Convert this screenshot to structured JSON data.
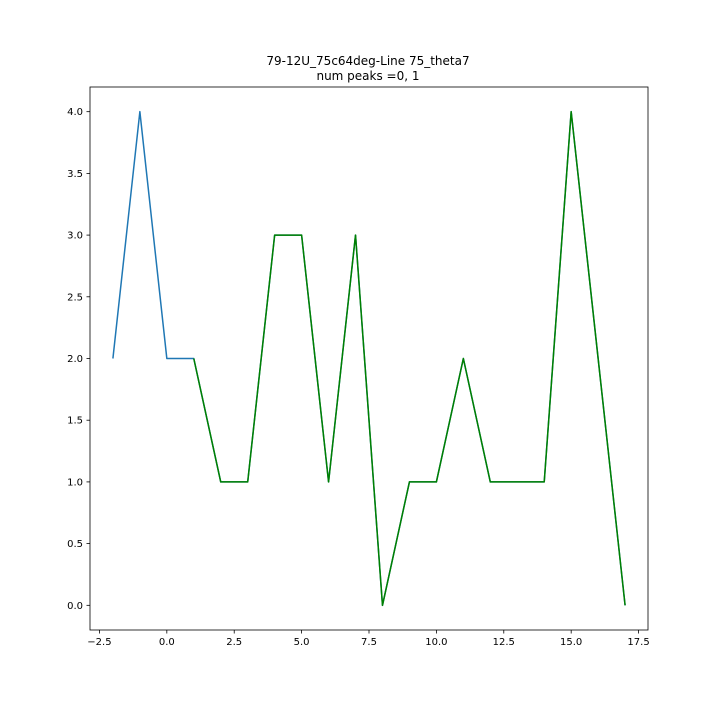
{
  "chart_data": {
    "type": "line",
    "title": "79-12U_75c64deg-Line 75_theta7",
    "subtitle": "num peaks =0, 1",
    "xlim": [
      -2.85,
      17.85
    ],
    "ylim": [
      -0.2,
      4.2
    ],
    "xticks": [
      -2.5,
      0.0,
      2.5,
      5.0,
      7.5,
      10.0,
      12.5,
      15.0,
      17.5
    ],
    "xtick_labels": [
      "−2.5",
      "0.0",
      "2.5",
      "5.0",
      "7.5",
      "10.0",
      "12.5",
      "15.0",
      "17.5"
    ],
    "yticks": [
      0.0,
      0.5,
      1.0,
      1.5,
      2.0,
      2.5,
      3.0,
      3.5,
      4.0
    ],
    "ytick_labels": [
      "0.0",
      "0.5",
      "1.0",
      "1.5",
      "2.0",
      "2.5",
      "3.0",
      "3.5",
      "4.0"
    ],
    "grid": false,
    "series": [
      {
        "color": "#1f77b4",
        "x": [
          -2,
          -1,
          0,
          1,
          2,
          3,
          4,
          5,
          6,
          7,
          8,
          9,
          10,
          11,
          12,
          13,
          14,
          15,
          16,
          17
        ],
        "y": [
          2,
          4,
          2,
          2,
          1,
          1,
          3,
          3,
          1,
          3,
          0,
          1,
          1,
          2,
          1,
          1,
          1,
          4,
          2,
          0
        ]
      },
      {
        "color": "#008000",
        "x": [
          1,
          2,
          3,
          4,
          5,
          6,
          7,
          8,
          9,
          10,
          11,
          12,
          13,
          14,
          15,
          16,
          17
        ],
        "y": [
          2,
          1,
          1,
          3,
          3,
          1,
          3,
          0,
          1,
          1,
          2,
          1,
          1,
          1,
          4,
          2,
          0
        ]
      }
    ]
  }
}
